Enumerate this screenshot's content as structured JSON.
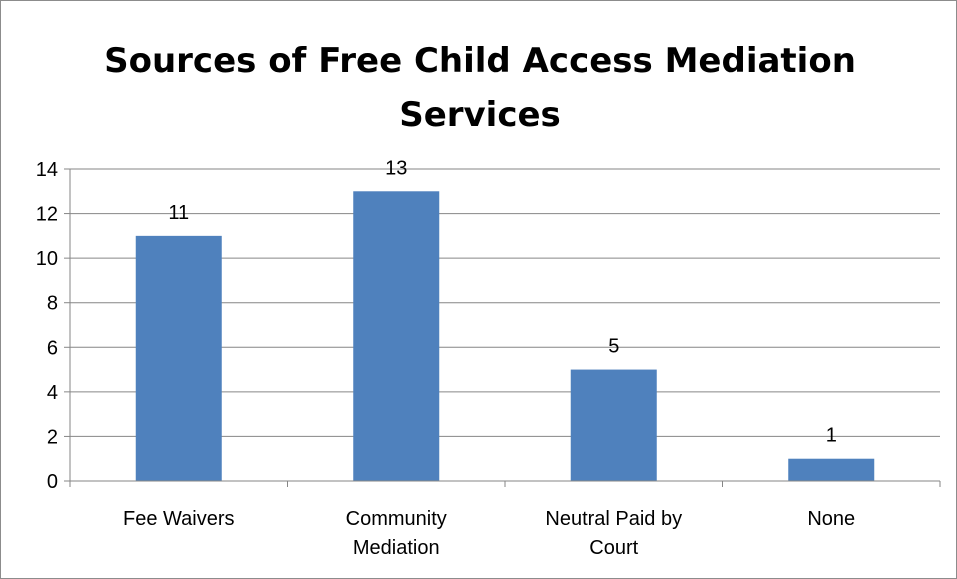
{
  "chart_data": {
    "type": "bar",
    "title_lines": [
      "Sources of Free Child Access Mediation",
      "Services"
    ],
    "categories": [
      [
        "Fee Waivers"
      ],
      [
        "Community",
        "Mediation"
      ],
      [
        "Neutral Paid by",
        "Court"
      ],
      [
        "None"
      ]
    ],
    "values": [
      11,
      13,
      5,
      1
    ],
    "ylim": [
      0,
      14
    ],
    "yticks": [
      0,
      2,
      4,
      6,
      8,
      10,
      12,
      14
    ],
    "grid": true,
    "legend": "none",
    "bar_color": "#4f81bd",
    "grid_color": "#868686"
  }
}
